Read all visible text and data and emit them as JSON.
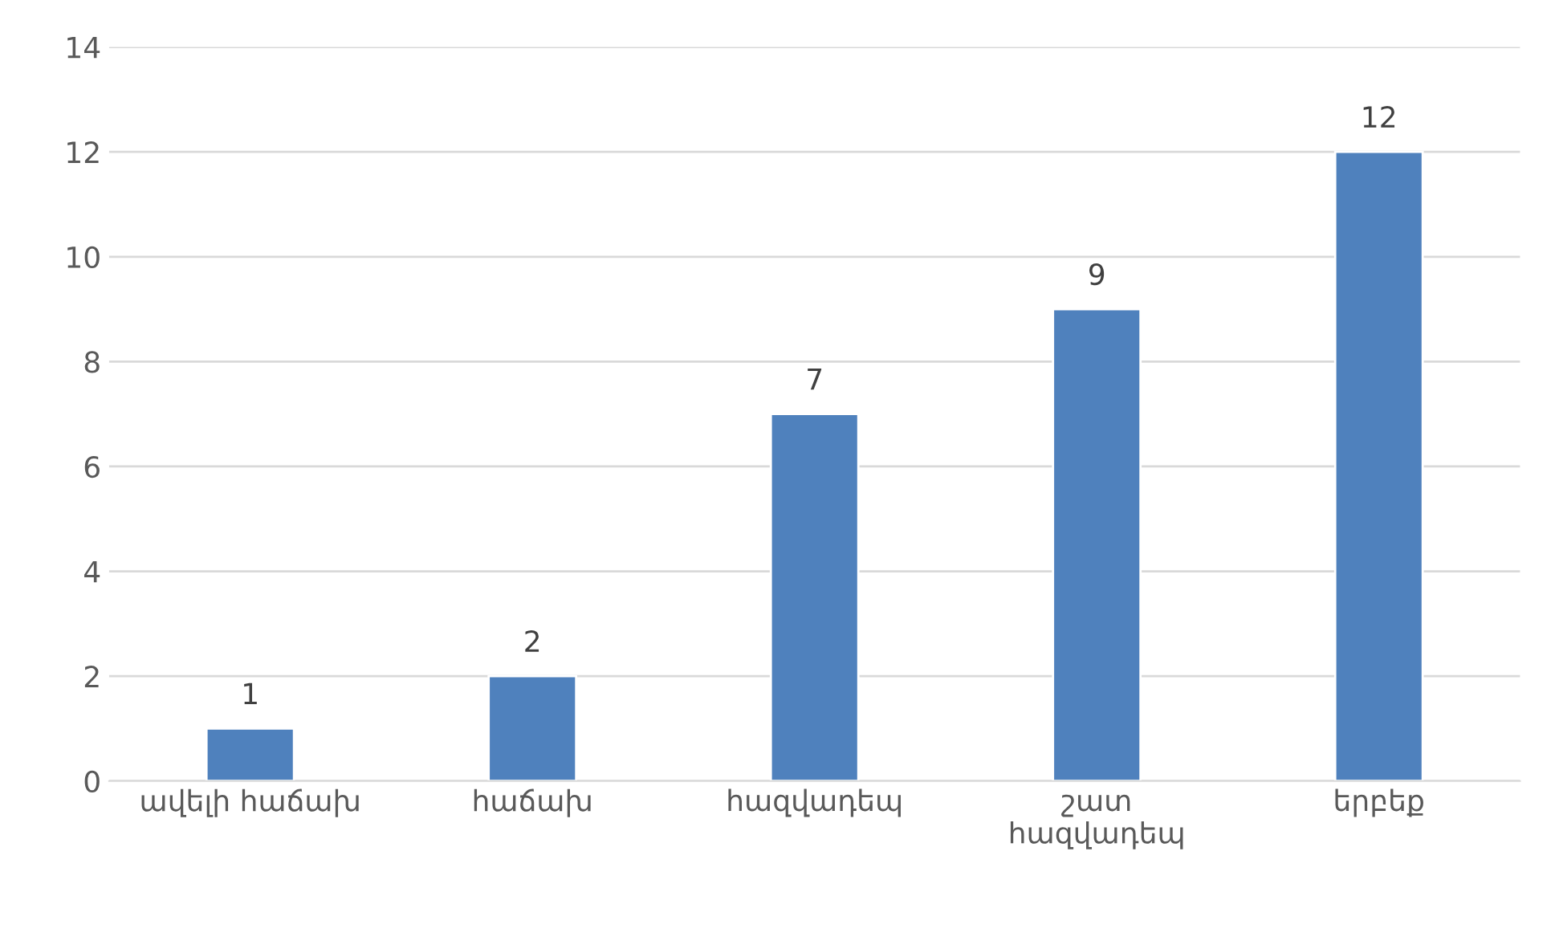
{
  "chart_data": {
    "type": "bar",
    "categories": [
      "ավելի հաճախ",
      "հաճախ",
      "հազվադեպ",
      "շատ\nհազվադեպ",
      "երբեք"
    ],
    "values": [
      1,
      2,
      7,
      9,
      12
    ],
    "color": "#4f81bd",
    "ylim": [
      0,
      14
    ],
    "yticks": [
      0,
      2,
      4,
      6,
      8,
      10,
      12,
      14
    ],
    "grid": "y",
    "data_labels": true
  }
}
